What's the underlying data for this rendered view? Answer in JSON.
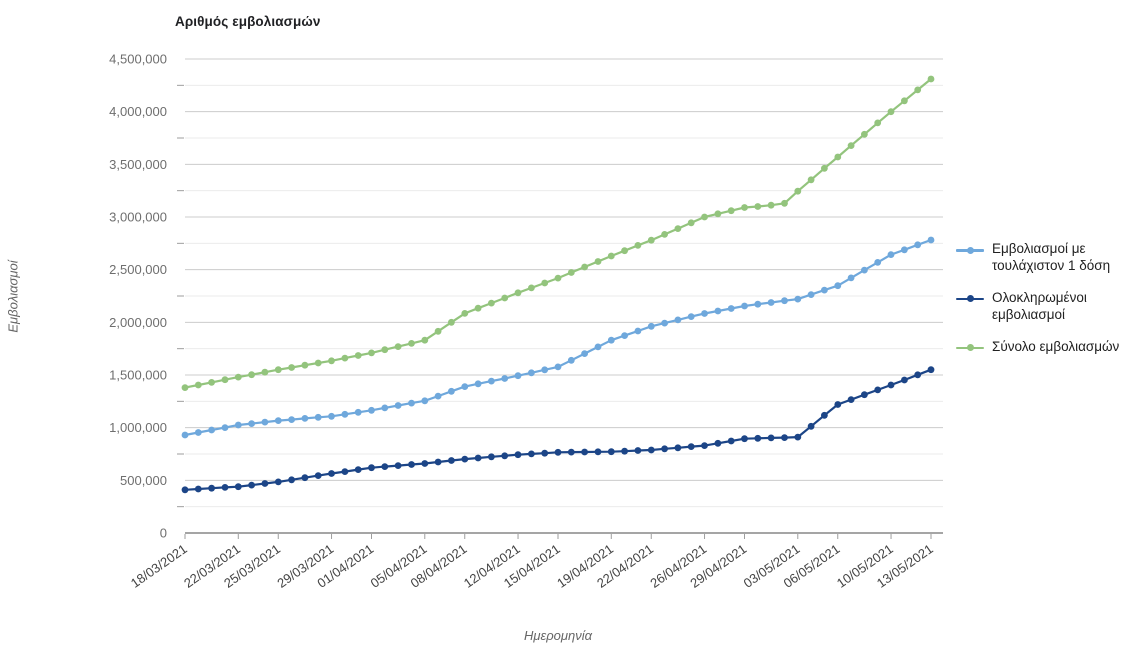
{
  "title": "Αριθμός εμβολιασμών",
  "y_axis": {
    "title": "Εμβολιασμοί"
  },
  "x_axis": {
    "title": "Ημερομηνία"
  },
  "legend": {
    "entries": [
      {
        "label": "Εμβολιασμοί με τουλάχιστον 1 δόση",
        "color": "#6fa8dc"
      },
      {
        "label": "Ολοκληρωμένοι εμβολιασμοί",
        "color": "#1c4587"
      },
      {
        "label": "Σύνολο εμβολιασμών",
        "color": "#93c47d"
      }
    ]
  },
  "colors": {
    "series_first_dose": "#6fa8dc",
    "series_completed": "#1c4587",
    "series_total": "#93c47d",
    "gridline_major": "#cccccc",
    "gridline_minor": "#ebebeb",
    "axis_line": "#6f6f6f",
    "tick": "#9e9e9e",
    "y_label": "#6e6e6e",
    "x_label": "#444444"
  },
  "chart_data": {
    "type": "line",
    "title": "Αριθμός εμβολιασμών",
    "xlabel": "Ημερομηνία",
    "ylabel": "Εμβολιασμοί",
    "ylim": [
      0,
      4500000
    ],
    "y_major_step": 500000,
    "y_minor_step": 250000,
    "grid": true,
    "legend_position": "right",
    "marker": "circle",
    "x": [
      "18/03/2021",
      "19/03/2021",
      "20/03/2021",
      "21/03/2021",
      "22/03/2021",
      "23/03/2021",
      "24/03/2021",
      "25/03/2021",
      "26/03/2021",
      "27/03/2021",
      "28/03/2021",
      "29/03/2021",
      "30/03/2021",
      "31/03/2021",
      "01/04/2021",
      "02/04/2021",
      "03/04/2021",
      "04/04/2021",
      "05/04/2021",
      "06/04/2021",
      "07/04/2021",
      "08/04/2021",
      "09/04/2021",
      "10/04/2021",
      "11/04/2021",
      "12/04/2021",
      "13/04/2021",
      "14/04/2021",
      "15/04/2021",
      "16/04/2021",
      "17/04/2021",
      "18/04/2021",
      "19/04/2021",
      "20/04/2021",
      "21/04/2021",
      "22/04/2021",
      "23/04/2021",
      "24/04/2021",
      "25/04/2021",
      "26/04/2021",
      "27/04/2021",
      "28/04/2021",
      "29/04/2021",
      "30/04/2021",
      "01/05/2021",
      "02/05/2021",
      "03/05/2021",
      "04/05/2021",
      "05/05/2021",
      "06/05/2021",
      "07/05/2021",
      "08/05/2021",
      "09/05/2021",
      "10/05/2021",
      "11/05/2021",
      "12/05/2021",
      "13/05/2021"
    ],
    "x_tick_labels": [
      "18/03/2021",
      "22/03/2021",
      "25/03/2021",
      "29/03/2021",
      "01/04/2021",
      "05/04/2021",
      "08/04/2021",
      "12/04/2021",
      "15/04/2021",
      "19/04/2021",
      "22/04/2021",
      "26/04/2021",
      "29/04/2021",
      "03/05/2021",
      "06/05/2021",
      "10/05/2021",
      "13/05/2021"
    ],
    "series": [
      {
        "name": "Εμβολιασμοί με τουλάχιστον 1 δόση",
        "color": "#6fa8dc",
        "values": [
          930000,
          954000,
          978000,
          1001000,
          1025000,
          1039000,
          1053000,
          1067000,
          1077000,
          1088000,
          1098000,
          1108000,
          1127000,
          1146000,
          1165000,
          1188000,
          1210000,
          1233000,
          1255000,
          1300000,
          1345000,
          1390000,
          1416000,
          1442000,
          1467000,
          1493000,
          1521000,
          1549000,
          1577000,
          1640000,
          1703000,
          1767000,
          1830000,
          1874000,
          1918000,
          1962000,
          1993000,
          2023000,
          2054000,
          2084000,
          2108000,
          2131000,
          2155000,
          2172000,
          2188000,
          2205000,
          2221000,
          2263000,
          2306000,
          2348000,
          2422000,
          2496000,
          2569000,
          2643000,
          2689000,
          2736000,
          2782000
        ]
      },
      {
        "name": "Ολοκληρωμένοι εμβολιασμοί",
        "color": "#1c4587",
        "values": [
          410000,
          418000,
          425000,
          433000,
          440000,
          455000,
          470000,
          485000,
          505000,
          525000,
          545000,
          565000,
          583000,
          602000,
          620000,
          630000,
          640000,
          650000,
          660000,
          674000,
          688000,
          702000,
          712000,
          723000,
          733000,
          743000,
          751000,
          758000,
          766000,
          768000,
          769000,
          771000,
          772000,
          777000,
          783000,
          788000,
          799000,
          809000,
          820000,
          830000,
          852000,
          873000,
          895000,
          899000,
          903000,
          906000,
          910000,
          1013000,
          1117000,
          1220000,
          1266000,
          1313000,
          1359000,
          1405000,
          1453000,
          1502000,
          1550000
        ]
      },
      {
        "name": "Σύνολο εμβολιασμών",
        "color": "#93c47d",
        "values": [
          1380000,
          1405000,
          1430000,
          1455000,
          1480000,
          1503000,
          1527000,
          1550000,
          1571000,
          1593000,
          1614000,
          1635000,
          1660000,
          1685000,
          1710000,
          1740000,
          1770000,
          1800000,
          1830000,
          1915000,
          2000000,
          2085000,
          2134000,
          2183000,
          2231000,
          2280000,
          2327000,
          2373000,
          2420000,
          2473000,
          2525000,
          2578000,
          2630000,
          2680000,
          2730000,
          2780000,
          2835000,
          2890000,
          2945000,
          3000000,
          3030000,
          3060000,
          3090000,
          3100000,
          3112000,
          3130000,
          3245000,
          3353000,
          3462000,
          3570000,
          3678000,
          3785000,
          3893000,
          4000000,
          4103000,
          4207000,
          4310000
        ]
      }
    ]
  }
}
